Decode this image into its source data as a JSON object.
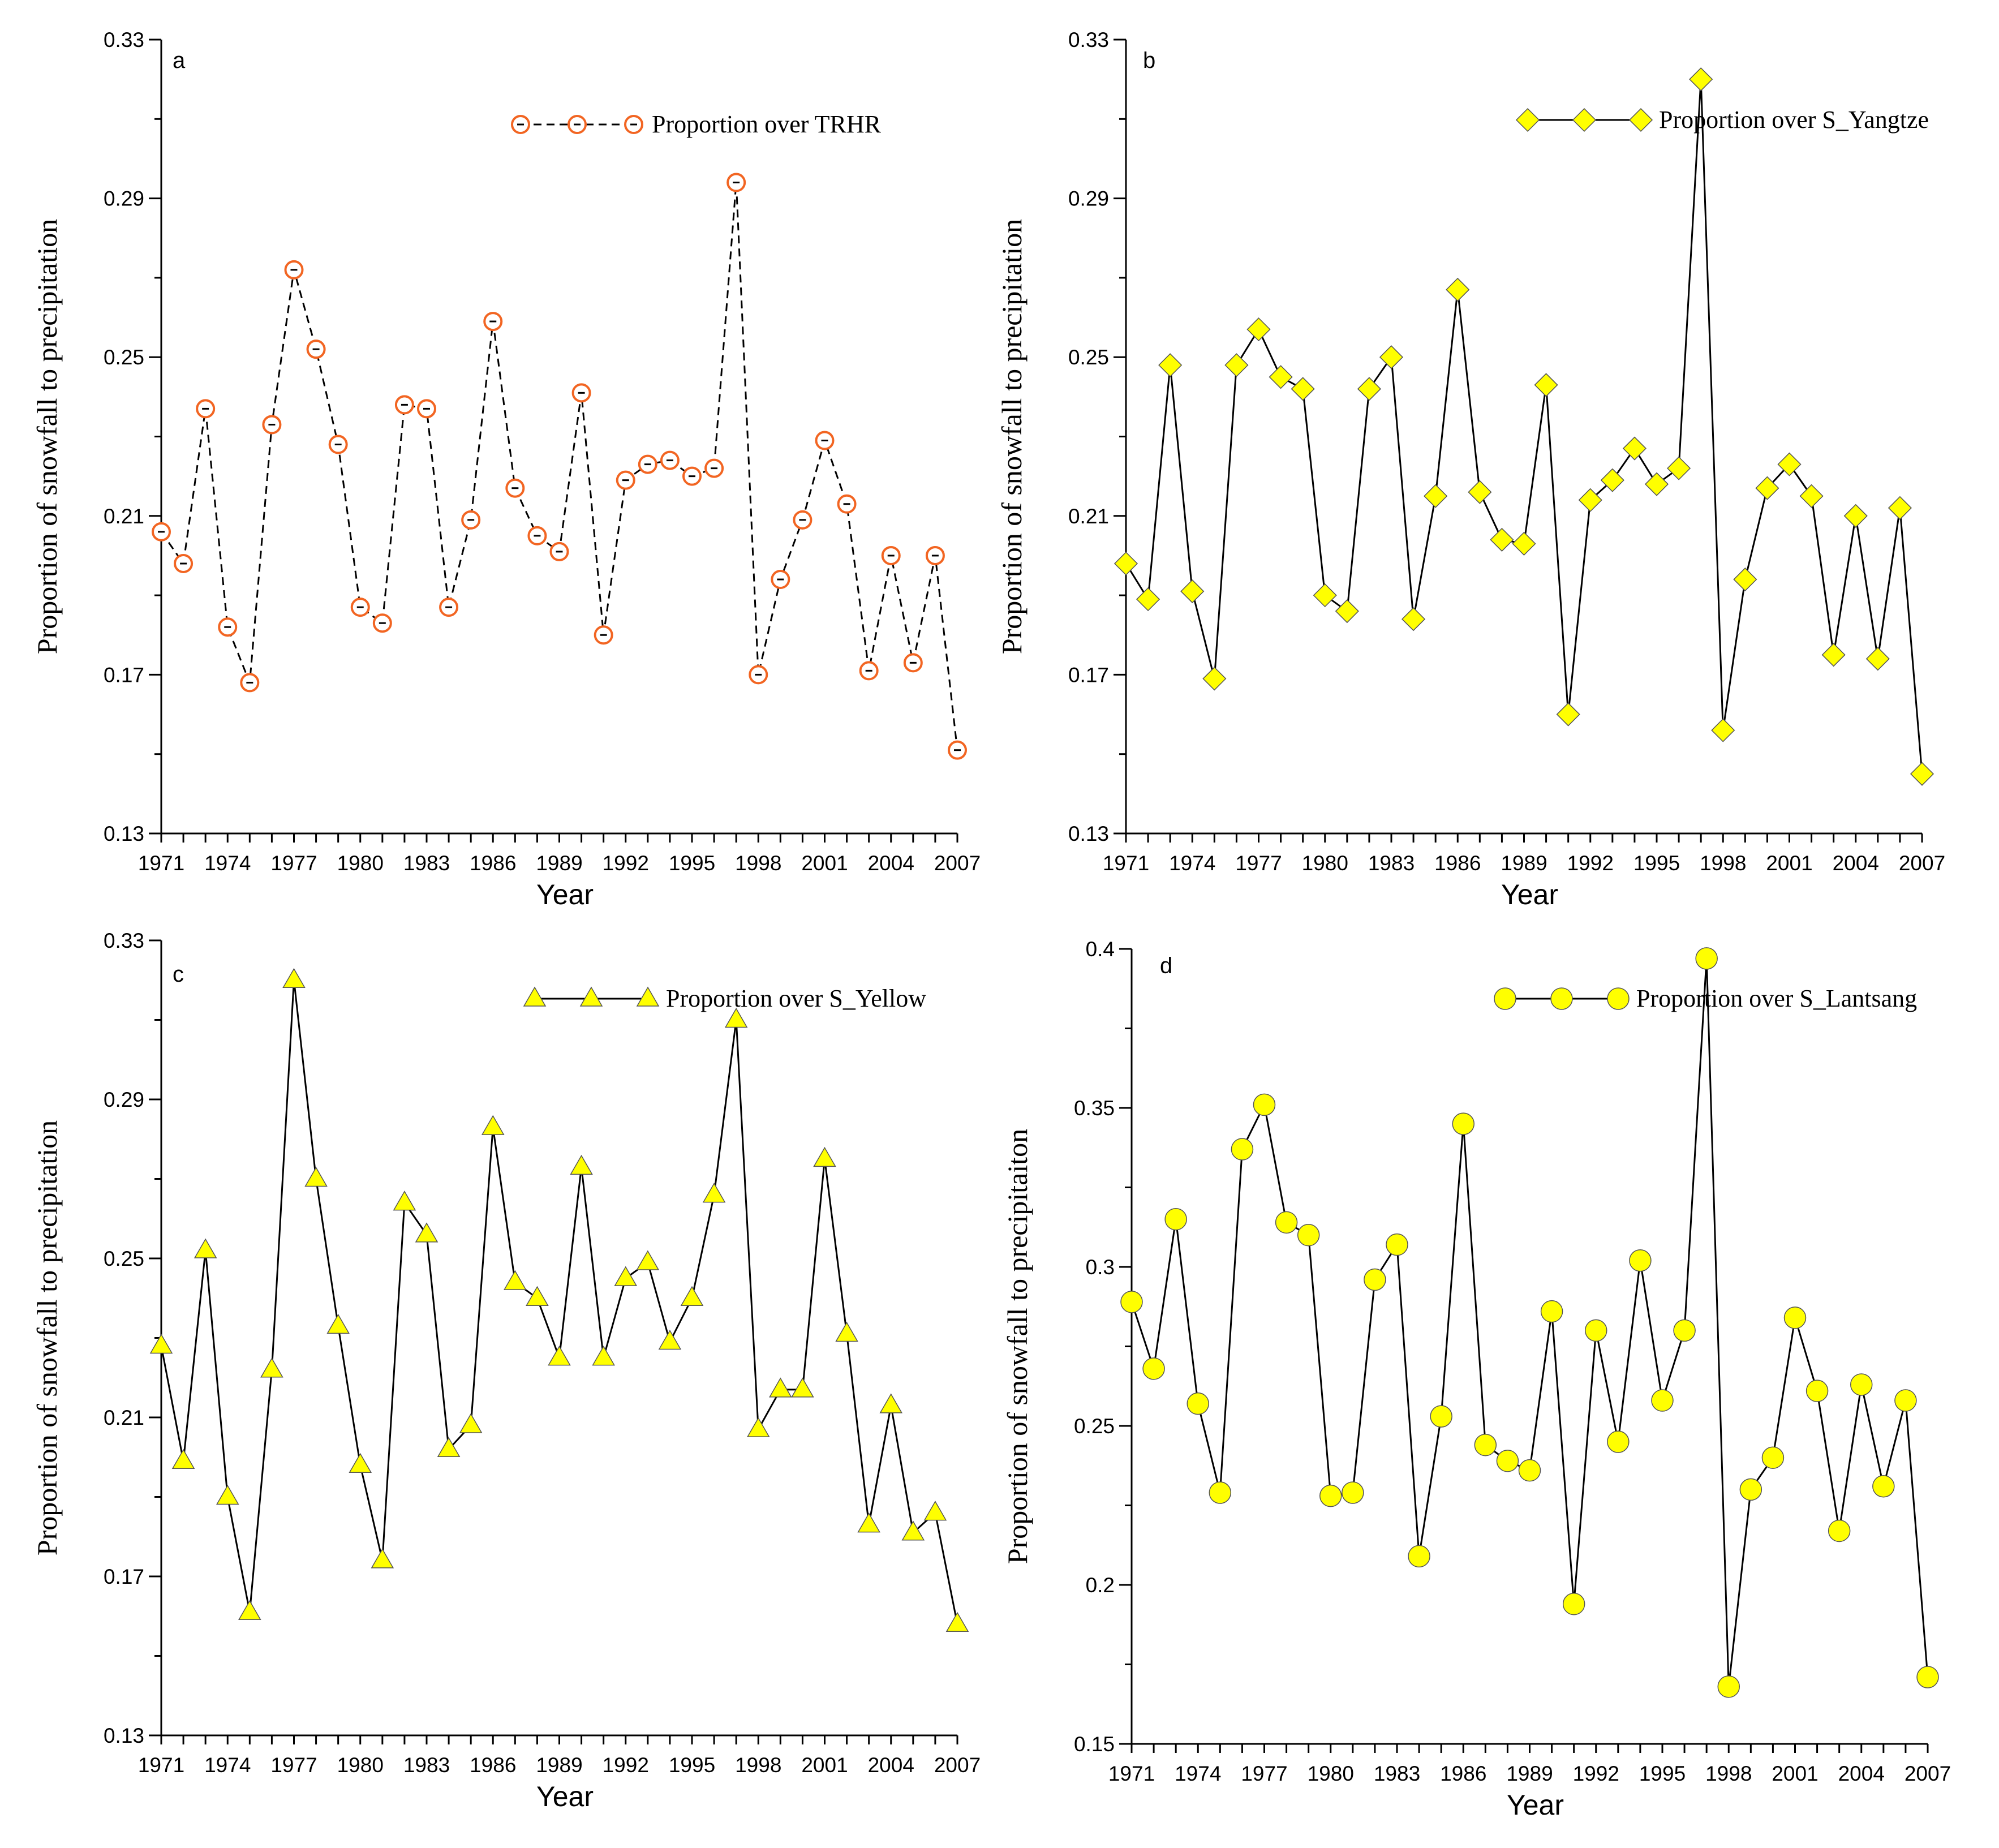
{
  "chart_data": [
    {
      "type": "line",
      "panel_label": "a",
      "xlabel": "Year",
      "ylabel": "Proportion of snowfall to precipitation",
      "xlim": [
        1971,
        2007
      ],
      "ylim": [
        0.13,
        0.33
      ],
      "xticks": [
        "1971",
        "1974",
        "1977",
        "1980",
        "1983",
        "1986",
        "1989",
        "1992",
        "1995",
        "1998",
        "2001",
        "2004",
        "2007"
      ],
      "yticks": [
        "0.13",
        "0.17",
        "0.21",
        "0.25",
        "0.29",
        "0.33"
      ],
      "legend_position": "top-right",
      "x": [
        1971,
        1972,
        1973,
        1974,
        1975,
        1976,
        1977,
        1978,
        1979,
        1980,
        1981,
        1982,
        1983,
        1984,
        1985,
        1986,
        1987,
        1988,
        1989,
        1990,
        1991,
        1992,
        1993,
        1994,
        1995,
        1996,
        1997,
        1998,
        1999,
        2000,
        2001,
        2002,
        2003,
        2004,
        2005,
        2006,
        2007
      ],
      "series": [
        {
          "name": "Proportion  over TRHR",
          "marker": "open-circle",
          "line_style": "dashed",
          "color": "#f26522",
          "line_color": "#000000",
          "values": [
            0.206,
            0.198,
            0.237,
            0.182,
            0.168,
            0.233,
            0.272,
            0.252,
            0.228,
            0.187,
            0.183,
            0.238,
            0.237,
            0.187,
            0.209,
            0.259,
            0.217,
            0.205,
            0.201,
            0.241,
            0.18,
            0.219,
            0.223,
            0.224,
            0.22,
            0.222,
            0.294,
            0.17,
            0.194,
            0.209,
            0.229,
            0.213,
            0.171,
            0.2,
            0.173,
            0.2,
            0.151
          ]
        }
      ]
    },
    {
      "type": "line",
      "panel_label": "b",
      "xlabel": "Year",
      "ylabel": "Proportion of snowfall to precipitation",
      "xlim": [
        1971,
        2007
      ],
      "ylim": [
        0.13,
        0.33
      ],
      "xticks": [
        "1971",
        "1974",
        "1977",
        "1980",
        "1983",
        "1986",
        "1989",
        "1992",
        "1995",
        "1998",
        "2001",
        "2004",
        "2007"
      ],
      "yticks": [
        "0.13",
        "0.17",
        "0.21",
        "0.25",
        "0.29",
        "0.33"
      ],
      "legend_position": "top-right",
      "x": [
        1971,
        1972,
        1973,
        1974,
        1975,
        1976,
        1977,
        1978,
        1979,
        1980,
        1981,
        1982,
        1983,
        1984,
        1985,
        1986,
        1987,
        1988,
        1989,
        1990,
        1991,
        1992,
        1993,
        1994,
        1995,
        1996,
        1997,
        1998,
        1999,
        2000,
        2001,
        2002,
        2003,
        2004,
        2005,
        2006,
        2007
      ],
      "series": [
        {
          "name": "Proportion over S_Yangtze",
          "marker": "diamond",
          "line_style": "solid",
          "color": "#ffff00",
          "line_color": "#000000",
          "values": [
            0.198,
            0.189,
            0.248,
            0.191,
            0.169,
            0.248,
            0.257,
            0.245,
            0.242,
            0.19,
            0.186,
            0.242,
            0.25,
            0.184,
            0.215,
            0.267,
            0.216,
            0.204,
            0.203,
            0.243,
            0.16,
            0.214,
            0.219,
            0.227,
            0.218,
            0.222,
            0.32,
            0.156,
            0.194,
            0.217,
            0.223,
            0.215,
            0.175,
            0.21,
            0.174,
            0.212,
            0.145
          ]
        }
      ]
    },
    {
      "type": "line",
      "panel_label": "c",
      "xlabel": "Year",
      "ylabel": "Proportion of snowfall to precipitation",
      "xlim": [
        1971,
        2007
      ],
      "ylim": [
        0.13,
        0.33
      ],
      "xticks": [
        "1971",
        "1974",
        "1977",
        "1980",
        "1983",
        "1986",
        "1989",
        "1992",
        "1995",
        "1998",
        "2001",
        "2004",
        "2007"
      ],
      "yticks": [
        "0.13",
        "0.17",
        "0.21",
        "0.25",
        "0.29",
        "0.33"
      ],
      "legend_position": "top-right",
      "x": [
        1971,
        1972,
        1973,
        1974,
        1975,
        1976,
        1977,
        1978,
        1979,
        1980,
        1981,
        1982,
        1983,
        1984,
        1985,
        1986,
        1987,
        1988,
        1989,
        1990,
        1991,
        1992,
        1993,
        1994,
        1995,
        1996,
        1997,
        1998,
        1999,
        2000,
        2001,
        2002,
        2003,
        2004,
        2005,
        2006,
        2007
      ],
      "series": [
        {
          "name": "Proportion over S_Yellow",
          "marker": "triangle",
          "line_style": "solid",
          "color": "#ffff00",
          "line_color": "#000000",
          "values": [
            0.228,
            0.199,
            0.252,
            0.19,
            0.161,
            0.222,
            0.32,
            0.27,
            0.233,
            0.198,
            0.174,
            0.264,
            0.256,
            0.202,
            0.208,
            0.283,
            0.244,
            0.24,
            0.225,
            0.273,
            0.225,
            0.245,
            0.249,
            0.229,
            0.24,
            0.266,
            0.31,
            0.207,
            0.217,
            0.217,
            0.275,
            0.231,
            0.183,
            0.213,
            0.181,
            0.186,
            0.158
          ]
        }
      ]
    },
    {
      "type": "line",
      "panel_label": "d",
      "xlabel": "Year",
      "ylabel": "Proportion of snowfall to precipitaiton",
      "xlim": [
        1971,
        2007
      ],
      "ylim": [
        0.15,
        0.4
      ],
      "xticks": [
        "1971",
        "1974",
        "1977",
        "1980",
        "1983",
        "1986",
        "1989",
        "1992",
        "1995",
        "1998",
        "2001",
        "2004",
        "2007"
      ],
      "yticks": [
        "0.15",
        "0.2",
        "0.25",
        "0.3",
        "0.35",
        "0.4"
      ],
      "legend_position": "top-right",
      "x": [
        1971,
        1972,
        1973,
        1974,
        1975,
        1976,
        1977,
        1978,
        1979,
        1980,
        1981,
        1982,
        1983,
        1984,
        1985,
        1986,
        1987,
        1988,
        1989,
        1990,
        1991,
        1992,
        1993,
        1994,
        1995,
        1996,
        1997,
        1998,
        1999,
        2000,
        2001,
        2002,
        2003,
        2004,
        2005,
        2006,
        2007
      ],
      "series": [
        {
          "name": "Proportion over S_Lantsang",
          "marker": "filled-circle",
          "line_style": "solid",
          "color": "#ffff00",
          "line_color": "#000000",
          "values": [
            0.289,
            0.268,
            0.315,
            0.257,
            0.229,
            0.337,
            0.351,
            0.314,
            0.31,
            0.228,
            0.229,
            0.296,
            0.307,
            0.209,
            0.253,
            0.345,
            0.244,
            0.239,
            0.236,
            0.286,
            0.194,
            0.28,
            0.245,
            0.302,
            0.258,
            0.28,
            0.397,
            0.168,
            0.23,
            0.24,
            0.284,
            0.261,
            0.217,
            0.263,
            0.231,
            0.258,
            0.171
          ]
        }
      ]
    }
  ]
}
